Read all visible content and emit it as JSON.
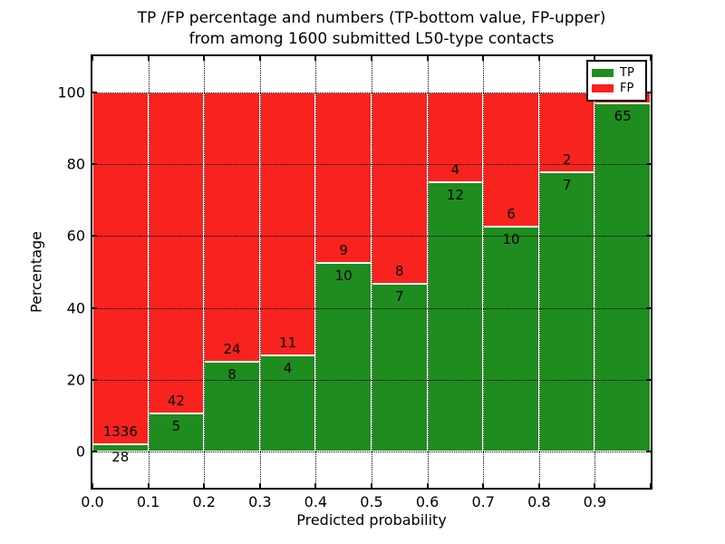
{
  "chart_data": {
    "type": "bar",
    "stacked": true,
    "title_line1": "TP /FP percentage and numbers (TP-bottom value, FP-upper)",
    "title_line2": "from among 1600 submitted L50-type contacts",
    "xlabel": "Predicted probability",
    "ylabel": "Percentage",
    "total_submitted": 1600,
    "xlim": [
      0.0,
      1.0
    ],
    "ylim": [
      -10,
      110
    ],
    "x_ticks": [
      0.0,
      0.1,
      0.2,
      0.3,
      0.4,
      0.5,
      0.6,
      0.7,
      0.8,
      0.9
    ],
    "x_tick_labels": [
      "0.0",
      "0.1",
      "0.2",
      "0.3",
      "0.4",
      "0.5",
      "0.6",
      "0.7",
      "0.8",
      "0.9"
    ],
    "y_ticks": [
      0,
      20,
      40,
      60,
      80,
      100
    ],
    "y_tick_labels": [
      "0",
      "20",
      "40",
      "60",
      "80",
      "100"
    ],
    "grid": "dotted",
    "legend": {
      "position": "upper right",
      "items": [
        {
          "label": "TP",
          "color": "#1f8c1f"
        },
        {
          "label": "FP",
          "color": "#f8231e"
        }
      ]
    },
    "colors": {
      "tp": "#1f8c1f",
      "fp": "#f8231e",
      "edge": "#ffffff"
    },
    "bars": [
      {
        "bin_start": 0.0,
        "bin_end": 0.1,
        "tp": 28,
        "fp": 1336,
        "tp_pct": 2.1,
        "tp_label": "28",
        "fp_label": "1336"
      },
      {
        "bin_start": 0.1,
        "bin_end": 0.2,
        "tp": 5,
        "fp": 42,
        "tp_pct": 10.6,
        "tp_label": "5",
        "fp_label": "42"
      },
      {
        "bin_start": 0.2,
        "bin_end": 0.3,
        "tp": 8,
        "fp": 24,
        "tp_pct": 25.0,
        "tp_label": "8",
        "fp_label": "24"
      },
      {
        "bin_start": 0.3,
        "bin_end": 0.4,
        "tp": 4,
        "fp": 11,
        "tp_pct": 26.7,
        "tp_label": "4",
        "fp_label": "11"
      },
      {
        "bin_start": 0.4,
        "bin_end": 0.5,
        "tp": 10,
        "fp": 9,
        "tp_pct": 52.6,
        "tp_label": "10",
        "fp_label": "9"
      },
      {
        "bin_start": 0.5,
        "bin_end": 0.6,
        "tp": 7,
        "fp": 8,
        "tp_pct": 46.7,
        "tp_label": "7",
        "fp_label": "8"
      },
      {
        "bin_start": 0.6,
        "bin_end": 0.7,
        "tp": 12,
        "fp": 4,
        "tp_pct": 75.0,
        "tp_label": "12",
        "fp_label": "4"
      },
      {
        "bin_start": 0.7,
        "bin_end": 0.8,
        "tp": 10,
        "fp": 6,
        "tp_pct": 62.5,
        "tp_label": "10",
        "fp_label": "6"
      },
      {
        "bin_start": 0.8,
        "bin_end": 0.9,
        "tp": 7,
        "fp": 2,
        "tp_pct": 77.8,
        "tp_label": "7",
        "fp_label": "2"
      },
      {
        "bin_start": 0.9,
        "bin_end": 1.0,
        "tp": 65,
        "fp": null,
        "tp_pct": 97.0,
        "tp_label": "65",
        "fp_label": ""
      }
    ]
  }
}
